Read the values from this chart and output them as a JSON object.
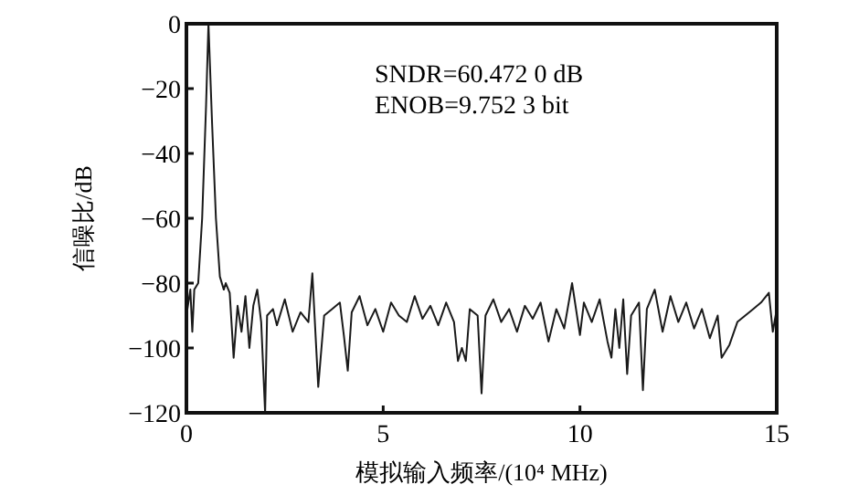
{
  "chart_data": {
    "type": "line",
    "xlabel": "模拟输入频率/(10⁴ MHz)",
    "ylabel": "信噪比/dB",
    "annotations": [
      "SNDR=60.472 0 dB",
      "ENOB=9.752 3 bit"
    ],
    "xlim": [
      0,
      15
    ],
    "xticks": [
      0,
      5,
      10,
      15
    ],
    "ylim": [
      -120,
      0
    ],
    "yticks": [
      -120,
      -100,
      -80,
      -60,
      -40,
      -20,
      0
    ],
    "grid": false,
    "line_style": "solid",
    "series": [
      {
        "color": "#1a1a1a",
        "x": [
          0,
          0.1,
          0.15,
          0.2,
          0.3,
          0.4,
          0.5,
          0.56,
          0.65,
          0.75,
          0.85,
          0.95,
          1.0,
          1.1,
          1.2,
          1.3,
          1.4,
          1.5,
          1.6,
          1.7,
          1.8,
          1.9,
          2.0,
          2.05,
          2.2,
          2.3,
          2.5,
          2.7,
          2.9,
          3.1,
          3.2,
          3.35,
          3.5,
          3.7,
          3.9,
          4.0,
          4.1,
          4.2,
          4.4,
          4.6,
          4.8,
          5.0,
          5.2,
          5.4,
          5.6,
          5.8,
          6.0,
          6.2,
          6.4,
          6.6,
          6.8,
          6.9,
          7.0,
          7.1,
          7.2,
          7.4,
          7.5,
          7.6,
          7.8,
          8.0,
          8.2,
          8.4,
          8.6,
          8.8,
          9.0,
          9.2,
          9.4,
          9.6,
          9.8,
          10.0,
          10.1,
          10.3,
          10.5,
          10.7,
          10.8,
          10.9,
          11.0,
          11.1,
          11.2,
          11.3,
          11.5,
          11.6,
          11.7,
          11.9,
          12.1,
          12.3,
          12.5,
          12.7,
          12.9,
          13.1,
          13.3,
          13.5,
          13.6,
          13.8,
          14.0,
          14.2,
          14.4,
          14.6,
          14.8,
          14.9,
          15.0
        ],
        "values": [
          -90,
          -82,
          -95,
          -82,
          -80,
          -60,
          -25,
          0,
          -30,
          -60,
          -78,
          -82,
          -80,
          -83,
          -103,
          -87,
          -95,
          -84,
          -100,
          -87,
          -82,
          -92,
          -120,
          -90,
          -88,
          -93,
          -85,
          -95,
          -89,
          -92,
          -77,
          -112,
          -90,
          -88,
          -86,
          -96,
          -107,
          -89,
          -84,
          -93,
          -88,
          -95,
          -86,
          -90,
          -92,
          -84,
          -91,
          -87,
          -93,
          -86,
          -92,
          -104,
          -100,
          -104,
          -88,
          -90,
          -114,
          -90,
          -85,
          -92,
          -88,
          -95,
          -87,
          -91,
          -86,
          -98,
          -88,
          -94,
          -80,
          -96,
          -86,
          -92,
          -85,
          -98,
          -103,
          -88,
          -100,
          -85,
          -108,
          -90,
          -86,
          -113,
          -88,
          -82,
          -95,
          -84,
          -92,
          -86,
          -94,
          -88,
          -97,
          -90,
          -103,
          -99,
          -92,
          -90,
          -88,
          -86,
          -83,
          -95,
          -88
        ]
      }
    ]
  }
}
